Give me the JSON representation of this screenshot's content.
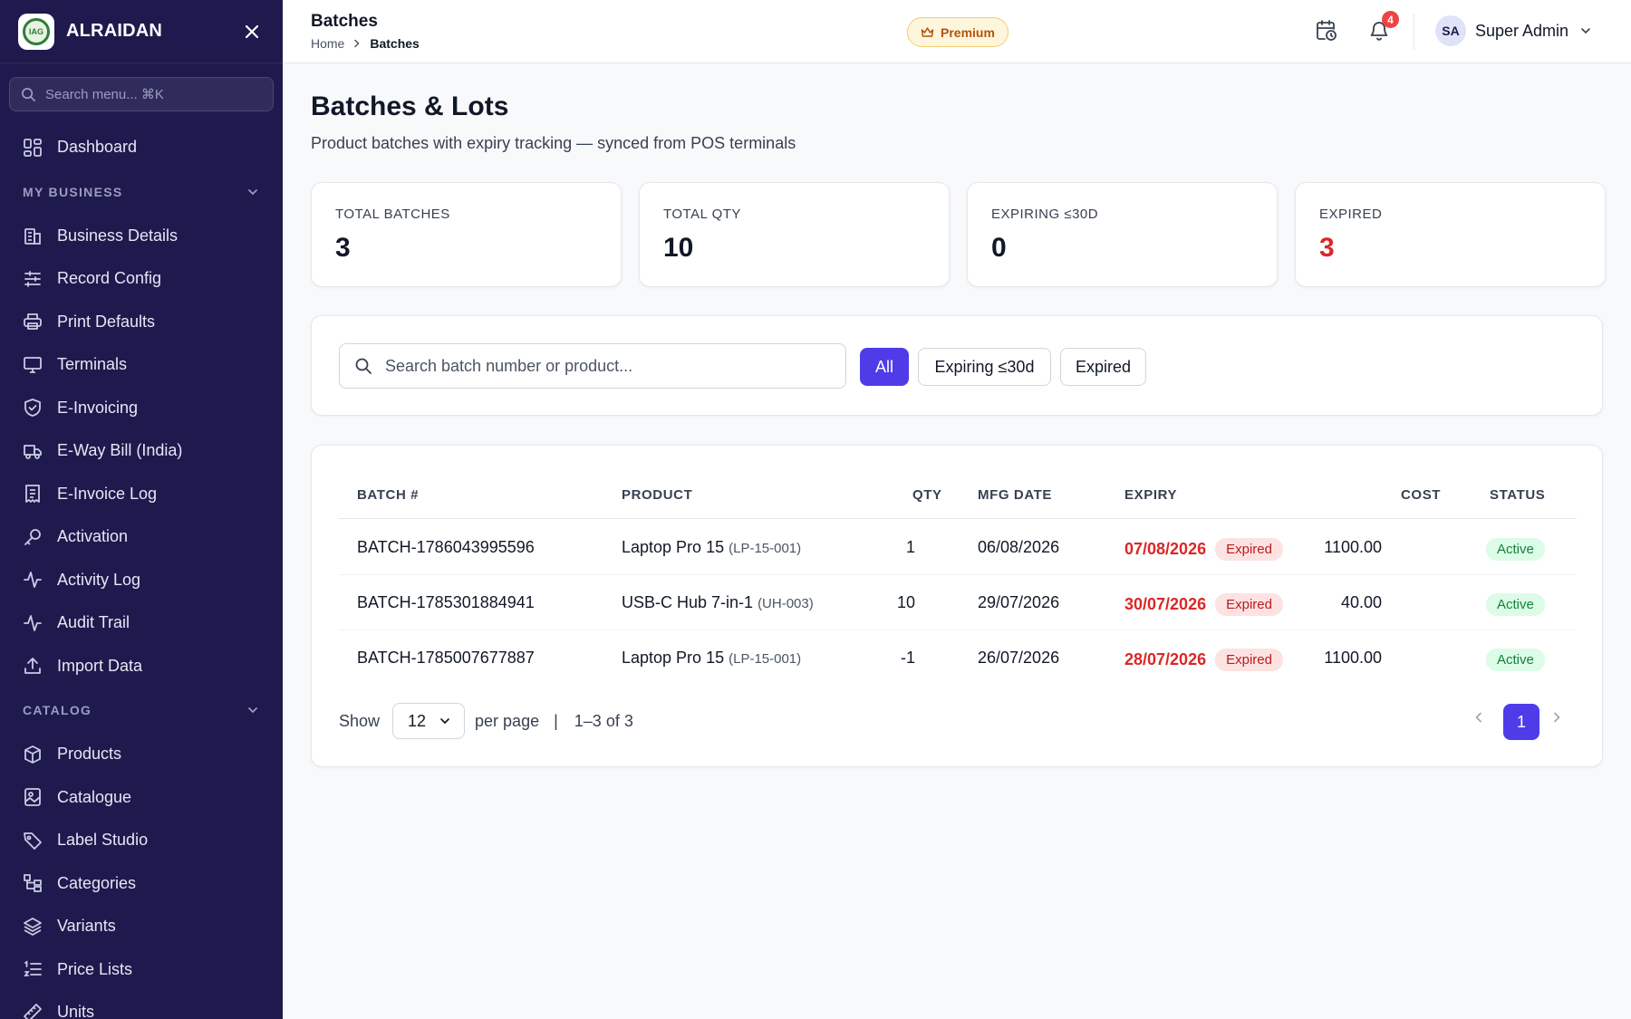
{
  "sidebar": {
    "brand": "ALRAIDAN",
    "logo_text": "IAG",
    "search_placeholder": "Search menu... ⌘K",
    "dashboard": {
      "label": "Dashboard",
      "icon": "grid-icon"
    },
    "sections": [
      {
        "title": "MY BUSINESS",
        "items": [
          {
            "label": "Business Details",
            "icon": "building-icon"
          },
          {
            "label": "Record Config",
            "icon": "sliders-icon"
          },
          {
            "label": "Print Defaults",
            "icon": "printer-icon"
          },
          {
            "label": "Terminals",
            "icon": "monitor-icon"
          },
          {
            "label": "E-Invoicing",
            "icon": "shield-icon"
          },
          {
            "label": "E-Way Bill (India)",
            "icon": "truck-icon"
          },
          {
            "label": "E-Invoice Log",
            "icon": "receipt-icon"
          },
          {
            "label": "Activation",
            "icon": "key-icon"
          },
          {
            "label": "Activity Log",
            "icon": "activity-icon"
          },
          {
            "label": "Audit Trail",
            "icon": "activity-icon"
          },
          {
            "label": "Import Data",
            "icon": "upload-icon"
          }
        ]
      },
      {
        "title": "CATALOG",
        "items": [
          {
            "label": "Products",
            "icon": "box-icon"
          },
          {
            "label": "Catalogue",
            "icon": "image-icon"
          },
          {
            "label": "Label Studio",
            "icon": "tag-icon"
          },
          {
            "label": "Categories",
            "icon": "hierarchy-icon"
          },
          {
            "label": "Variants",
            "icon": "layers-icon"
          },
          {
            "label": "Price Lists",
            "icon": "list-ordered-icon"
          },
          {
            "label": "Units",
            "icon": "ruler-icon"
          }
        ]
      }
    ]
  },
  "header": {
    "title": "Batches",
    "breadcrumb": {
      "home": "Home",
      "current": "Batches"
    },
    "premium_label": "Premium",
    "notification_count": "4",
    "user_initials": "SA",
    "user_name": "Super Admin"
  },
  "page": {
    "title": "Batches & Lots",
    "subtitle": "Product batches with expiry tracking — synced from POS terminals"
  },
  "stats": [
    {
      "label": "TOTAL BATCHES",
      "value": "3",
      "color": "#111827"
    },
    {
      "label": "TOTAL QTY",
      "value": "10",
      "color": "#111827"
    },
    {
      "label": "EXPIRING ≤30D",
      "value": "0",
      "color": "#111827"
    },
    {
      "label": "EXPIRED",
      "value": "3",
      "color": "#dc2626"
    }
  ],
  "filters": {
    "search_placeholder": "Search batch number or product...",
    "chips": [
      "All",
      "Expiring ≤30d",
      "Expired"
    ],
    "active_chip": "All"
  },
  "table": {
    "columns": [
      "BATCH #",
      "PRODUCT",
      "QTY",
      "MFG DATE",
      "EXPIRY",
      "COST",
      "STATUS"
    ],
    "rows": [
      {
        "batch": "BATCH-1786043995596",
        "product": "Laptop Pro 15",
        "code": "(LP-15-001)",
        "qty": "1",
        "mfg": "06/08/2026",
        "expiry": "07/08/2026",
        "expiry_badge": "Expired",
        "cost": "1100.00",
        "status": "Active"
      },
      {
        "batch": "BATCH-1785301884941",
        "product": "USB-C Hub 7-in-1",
        "code": "(UH-003)",
        "qty": "10",
        "mfg": "29/07/2026",
        "expiry": "30/07/2026",
        "expiry_badge": "Expired",
        "cost": "40.00",
        "status": "Active"
      },
      {
        "batch": "BATCH-1785007677887",
        "product": "Laptop Pro 15",
        "code": "(LP-15-001)",
        "qty": "-1",
        "mfg": "26/07/2026",
        "expiry": "28/07/2026",
        "expiry_badge": "Expired",
        "cost": "1100.00",
        "status": "Active"
      }
    ]
  },
  "pagination": {
    "show_label": "Show",
    "per_page_value": "12",
    "per_page_label": "per page",
    "divider": "|",
    "range": "1–3 of 3",
    "current_page": "1"
  },
  "colors": {
    "sidebar_bg": "#1e1a4d",
    "accent": "#4f3ce8",
    "danger": "#dc2626",
    "success": "#15803d"
  }
}
